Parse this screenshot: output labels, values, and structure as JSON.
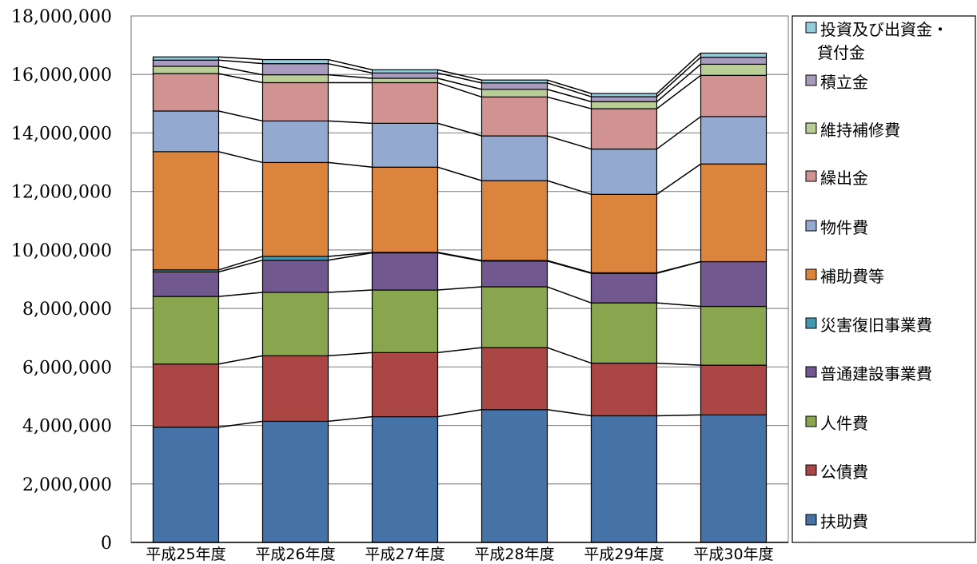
{
  "chart_data": {
    "type": "bar",
    "stacked": true,
    "categories": [
      "平成25年度",
      "平成26年度",
      "平成27年度",
      "平成28年度",
      "平成29年度",
      "平成30年度"
    ],
    "ylim": [
      0,
      18000000
    ],
    "yticks": [
      0,
      2000000,
      4000000,
      6000000,
      8000000,
      10000000,
      12000000,
      14000000,
      16000000,
      18000000
    ],
    "ytick_labels": [
      "0",
      "2,000,000",
      "4,000,000",
      "6,000,000",
      "8,000,000",
      "10,000,000",
      "12,000,000",
      "14,000,000",
      "16,000,000",
      "18,000,000"
    ],
    "grid": true,
    "series_lines": true,
    "legend_position": "right",
    "series": [
      {
        "name": "扶助費",
        "color": "#4572A7",
        "values": [
          3940000,
          4140000,
          4300000,
          4540000,
          4330000,
          4360000
        ]
      },
      {
        "name": "公債費",
        "color": "#AA4643",
        "values": [
          2160000,
          2240000,
          2190000,
          2120000,
          1800000,
          1700000
        ]
      },
      {
        "name": "人件費",
        "color": "#89A54E",
        "values": [
          2310000,
          2170000,
          2140000,
          2080000,
          2060000,
          2010000
        ]
      },
      {
        "name": "普通建設事業費",
        "color": "#71588F",
        "values": [
          840000,
          1100000,
          1270000,
          880000,
          1010000,
          1530000
        ]
      },
      {
        "name": "災害復旧事業費",
        "color": "#4198AF",
        "values": [
          70000,
          130000,
          20000,
          20000,
          20000,
          0
        ]
      },
      {
        "name": "補助費等",
        "color": "#DB843D",
        "values": [
          4040000,
          3210000,
          2910000,
          2730000,
          2680000,
          3340000
        ]
      },
      {
        "name": "物件費",
        "color": "#93A9CF",
        "values": [
          1390000,
          1420000,
          1500000,
          1530000,
          1550000,
          1620000
        ]
      },
      {
        "name": "繰出金",
        "color": "#D19392",
        "values": [
          1280000,
          1310000,
          1390000,
          1330000,
          1380000,
          1410000
        ]
      },
      {
        "name": "維持補修費",
        "color": "#B9CD96",
        "values": [
          250000,
          270000,
          150000,
          260000,
          240000,
          380000
        ]
      },
      {
        "name": "積立金",
        "color": "#A99BBD",
        "values": [
          210000,
          380000,
          180000,
          220000,
          170000,
          240000
        ]
      },
      {
        "name": "投資及び出資金・貸付金",
        "legend_lines": [
          "投資及び出資金・",
          "貸付金"
        ],
        "color": "#92CDDC",
        "values": [
          110000,
          140000,
          110000,
          100000,
          110000,
          140000
        ]
      }
    ]
  }
}
